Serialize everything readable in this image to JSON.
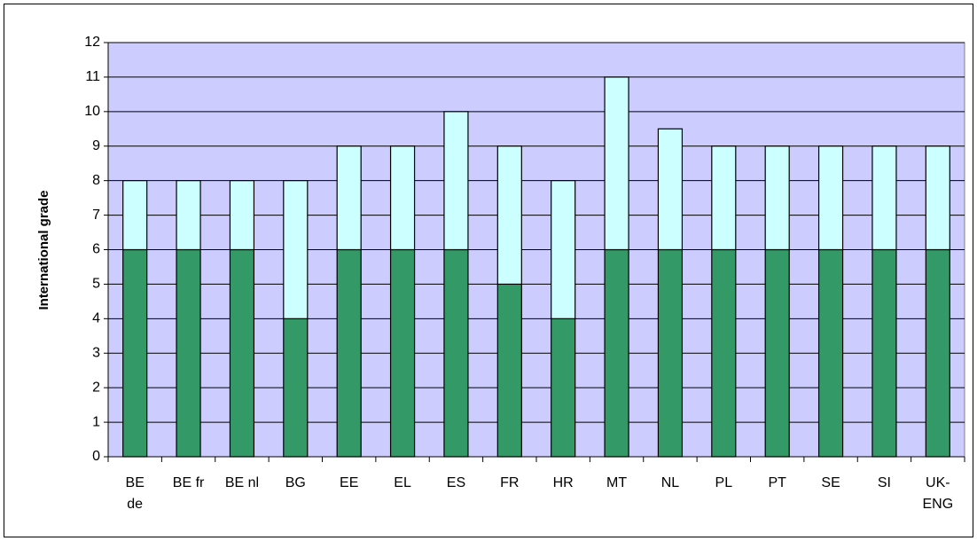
{
  "chart_data": {
    "type": "stacked_bar",
    "y_label": "International grade",
    "categories": [
      "BE\nde",
      "BE fr",
      "BE nl",
      "BG",
      "EE",
      "EL",
      "ES",
      "FR",
      "HR",
      "MT",
      "NL",
      "PL",
      "PT",
      "SE",
      "SI",
      "UK-\nENG"
    ],
    "series": [
      {
        "color": "#339966",
        "values": [
          6,
          6,
          6,
          4,
          6,
          6,
          6,
          5,
          4,
          6,
          6,
          6,
          6,
          6,
          6,
          6
        ]
      },
      {
        "color": "#ccffff",
        "values": [
          2,
          2,
          2,
          4,
          3,
          3,
          4,
          4,
          4,
          5,
          3.5,
          3,
          3,
          3,
          3,
          3
        ]
      }
    ],
    "ylim": [
      0,
      12
    ],
    "yticks": [
      0,
      1,
      2,
      3,
      4,
      5,
      6,
      7,
      8,
      9,
      10,
      11,
      12
    ],
    "grid": true,
    "plot_background": "#ccccff"
  }
}
